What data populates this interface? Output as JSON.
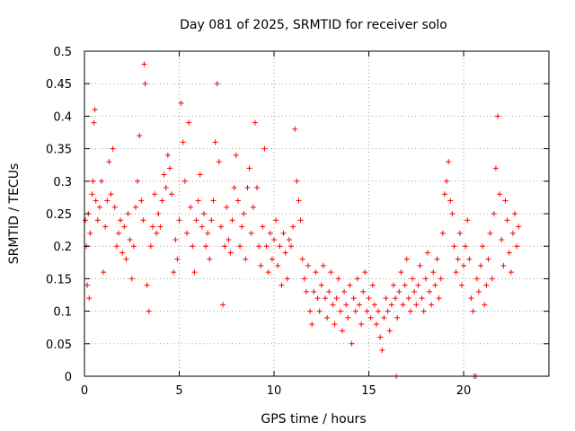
{
  "chart_data": {
    "type": "scatter",
    "title": "Day 081 of 2025, SRMTID for receiver solo",
    "xlabel": "GPS time / hours",
    "ylabel": "SRMTID / TECUs",
    "xlim": [
      0,
      24.5
    ],
    "ylim": [
      0,
      0.5
    ],
    "grid": true,
    "marker": "+",
    "color": "#ff0000",
    "xticks": [
      {
        "value": 0,
        "label": "0"
      },
      {
        "value": 5,
        "label": "5"
      },
      {
        "value": 10,
        "label": "10"
      },
      {
        "value": 15,
        "label": "15"
      },
      {
        "value": 20,
        "label": "20"
      }
    ],
    "yticks": [
      {
        "value": 0,
        "label": "0"
      },
      {
        "value": 0.05,
        "label": "0.05"
      },
      {
        "value": 0.1,
        "label": "0.1"
      },
      {
        "value": 0.15,
        "label": "0.15"
      },
      {
        "value": 0.2,
        "label": "0.2"
      },
      {
        "value": 0.25,
        "label": "0.25"
      },
      {
        "value": 0.3,
        "label": "0.3"
      },
      {
        "value": 0.35,
        "label": "0.35"
      },
      {
        "value": 0.4,
        "label": "0.4"
      },
      {
        "value": 0.45,
        "label": "0.45"
      },
      {
        "value": 0.5,
        "label": "0.5"
      }
    ],
    "series": [
      {
        "name": "SRMTID",
        "points": [
          [
            0.05,
            0.24
          ],
          [
            0.1,
            0.2
          ],
          [
            0.15,
            0.14
          ],
          [
            0.2,
            0.25
          ],
          [
            0.25,
            0.12
          ],
          [
            0.3,
            0.22
          ],
          [
            0.4,
            0.28
          ],
          [
            0.45,
            0.3
          ],
          [
            0.5,
            0.39
          ],
          [
            0.55,
            0.41
          ],
          [
            0.6,
            0.27
          ],
          [
            0.7,
            0.24
          ],
          [
            0.8,
            0.26
          ],
          [
            0.9,
            0.3
          ],
          [
            1.0,
            0.16
          ],
          [
            1.1,
            0.23
          ],
          [
            1.2,
            0.27
          ],
          [
            1.3,
            0.33
          ],
          [
            1.4,
            0.28
          ],
          [
            1.5,
            0.35
          ],
          [
            1.6,
            0.26
          ],
          [
            1.7,
            0.2
          ],
          [
            1.8,
            0.22
          ],
          [
            1.9,
            0.24
          ],
          [
            2.0,
            0.19
          ],
          [
            2.1,
            0.23
          ],
          [
            2.2,
            0.18
          ],
          [
            2.3,
            0.25
          ],
          [
            2.4,
            0.21
          ],
          [
            2.5,
            0.15
          ],
          [
            2.6,
            0.2
          ],
          [
            2.7,
            0.26
          ],
          [
            2.8,
            0.3
          ],
          [
            2.9,
            0.37
          ],
          [
            3.0,
            0.27
          ],
          [
            3.1,
            0.24
          ],
          [
            3.15,
            0.48
          ],
          [
            3.2,
            0.45
          ],
          [
            3.3,
            0.14
          ],
          [
            3.4,
            0.1
          ],
          [
            3.5,
            0.2
          ],
          [
            3.6,
            0.23
          ],
          [
            3.7,
            0.28
          ],
          [
            3.8,
            0.22
          ],
          [
            3.9,
            0.25
          ],
          [
            4.0,
            0.23
          ],
          [
            4.1,
            0.27
          ],
          [
            4.2,
            0.31
          ],
          [
            4.3,
            0.29
          ],
          [
            4.4,
            0.34
          ],
          [
            4.5,
            0.32
          ],
          [
            4.6,
            0.28
          ],
          [
            4.7,
            0.16
          ],
          [
            4.8,
            0.21
          ],
          [
            4.9,
            0.18
          ],
          [
            5.0,
            0.24
          ],
          [
            5.1,
            0.42
          ],
          [
            5.2,
            0.36
          ],
          [
            5.3,
            0.3
          ],
          [
            5.4,
            0.22
          ],
          [
            5.5,
            0.39
          ],
          [
            5.6,
            0.26
          ],
          [
            5.7,
            0.2
          ],
          [
            5.8,
            0.16
          ],
          [
            5.9,
            0.24
          ],
          [
            6.0,
            0.27
          ],
          [
            6.1,
            0.31
          ],
          [
            6.2,
            0.23
          ],
          [
            6.3,
            0.25
          ],
          [
            6.4,
            0.2
          ],
          [
            6.5,
            0.22
          ],
          [
            6.6,
            0.18
          ],
          [
            6.7,
            0.24
          ],
          [
            6.8,
            0.27
          ],
          [
            6.9,
            0.36
          ],
          [
            7.0,
            0.45
          ],
          [
            7.1,
            0.33
          ],
          [
            7.2,
            0.23
          ],
          [
            7.3,
            0.11
          ],
          [
            7.4,
            0.2
          ],
          [
            7.5,
            0.26
          ],
          [
            7.6,
            0.21
          ],
          [
            7.7,
            0.19
          ],
          [
            7.8,
            0.24
          ],
          [
            7.9,
            0.29
          ],
          [
            8.0,
            0.34
          ],
          [
            8.1,
            0.27
          ],
          [
            8.2,
            0.2
          ],
          [
            8.3,
            0.23
          ],
          [
            8.4,
            0.25
          ],
          [
            8.5,
            0.18
          ],
          [
            8.6,
            0.29
          ],
          [
            8.7,
            0.32
          ],
          [
            8.8,
            0.22
          ],
          [
            8.9,
            0.26
          ],
          [
            9.0,
            0.39
          ],
          [
            9.1,
            0.29
          ],
          [
            9.2,
            0.2
          ],
          [
            9.3,
            0.17
          ],
          [
            9.4,
            0.23
          ],
          [
            9.5,
            0.35
          ],
          [
            9.6,
            0.2
          ],
          [
            9.7,
            0.16
          ],
          [
            9.8,
            0.22
          ],
          [
            9.9,
            0.18
          ],
          [
            10.0,
            0.21
          ],
          [
            10.1,
            0.24
          ],
          [
            10.2,
            0.17
          ],
          [
            10.3,
            0.2
          ],
          [
            10.4,
            0.14
          ],
          [
            10.5,
            0.22
          ],
          [
            10.6,
            0.19
          ],
          [
            10.7,
            0.15
          ],
          [
            10.8,
            0.21
          ],
          [
            10.9,
            0.2
          ],
          [
            11.0,
            0.23
          ],
          [
            11.1,
            0.38
          ],
          [
            11.2,
            0.3
          ],
          [
            11.3,
            0.27
          ],
          [
            11.4,
            0.24
          ],
          [
            11.5,
            0.18
          ],
          [
            11.6,
            0.15
          ],
          [
            11.7,
            0.13
          ],
          [
            11.8,
            0.17
          ],
          [
            11.9,
            0.1
          ],
          [
            12.0,
            0.08
          ],
          [
            12.1,
            0.13
          ],
          [
            12.2,
            0.16
          ],
          [
            12.3,
            0.12
          ],
          [
            12.4,
            0.1
          ],
          [
            12.5,
            0.14
          ],
          [
            12.6,
            0.17
          ],
          [
            12.7,
            0.12
          ],
          [
            12.8,
            0.09
          ],
          [
            12.9,
            0.13
          ],
          [
            13.0,
            0.16
          ],
          [
            13.1,
            0.11
          ],
          [
            13.2,
            0.08
          ],
          [
            13.3,
            0.12
          ],
          [
            13.4,
            0.15
          ],
          [
            13.5,
            0.1
          ],
          [
            13.6,
            0.07
          ],
          [
            13.7,
            0.13
          ],
          [
            13.8,
            0.11
          ],
          [
            13.9,
            0.09
          ],
          [
            14.0,
            0.14
          ],
          [
            14.1,
            0.05
          ],
          [
            14.2,
            0.12
          ],
          [
            14.3,
            0.1
          ],
          [
            14.4,
            0.15
          ],
          [
            14.5,
            0.11
          ],
          [
            14.6,
            0.08
          ],
          [
            14.7,
            0.13
          ],
          [
            14.8,
            0.16
          ],
          [
            14.9,
            0.1
          ],
          [
            15.0,
            0.12
          ],
          [
            15.1,
            0.09
          ],
          [
            15.2,
            0.14
          ],
          [
            15.3,
            0.11
          ],
          [
            15.4,
            0.08
          ],
          [
            15.5,
            0.1
          ],
          [
            15.6,
            0.06
          ],
          [
            15.7,
            0.04
          ],
          [
            15.8,
            0.09
          ],
          [
            15.9,
            0.12
          ],
          [
            16.0,
            0.1
          ],
          [
            16.1,
            0.07
          ],
          [
            16.2,
            0.11
          ],
          [
            16.3,
            0.14
          ],
          [
            16.4,
            0.12
          ],
          [
            16.45,
            0.0
          ],
          [
            16.5,
            0.09
          ],
          [
            16.6,
            0.13
          ],
          [
            16.7,
            0.16
          ],
          [
            16.8,
            0.11
          ],
          [
            16.9,
            0.14
          ],
          [
            17.0,
            0.18
          ],
          [
            17.1,
            0.12
          ],
          [
            17.2,
            0.1
          ],
          [
            17.3,
            0.15
          ],
          [
            17.4,
            0.13
          ],
          [
            17.5,
            0.11
          ],
          [
            17.6,
            0.14
          ],
          [
            17.7,
            0.17
          ],
          [
            17.8,
            0.12
          ],
          [
            17.9,
            0.1
          ],
          [
            18.0,
            0.15
          ],
          [
            18.1,
            0.19
          ],
          [
            18.2,
            0.13
          ],
          [
            18.3,
            0.11
          ],
          [
            18.4,
            0.16
          ],
          [
            18.5,
            0.14
          ],
          [
            18.6,
            0.18
          ],
          [
            18.7,
            0.12
          ],
          [
            18.8,
            0.15
          ],
          [
            18.9,
            0.22
          ],
          [
            19.0,
            0.28
          ],
          [
            19.1,
            0.3
          ],
          [
            19.2,
            0.33
          ],
          [
            19.3,
            0.27
          ],
          [
            19.4,
            0.25
          ],
          [
            19.5,
            0.2
          ],
          [
            19.6,
            0.16
          ],
          [
            19.7,
            0.18
          ],
          [
            19.8,
            0.22
          ],
          [
            19.9,
            0.14
          ],
          [
            20.0,
            0.17
          ],
          [
            20.1,
            0.2
          ],
          [
            20.2,
            0.24
          ],
          [
            20.3,
            0.18
          ],
          [
            20.4,
            0.12
          ],
          [
            20.5,
            0.1
          ],
          [
            20.55,
            0.0
          ],
          [
            20.65,
            0.0
          ],
          [
            20.7,
            0.15
          ],
          [
            20.8,
            0.13
          ],
          [
            20.9,
            0.17
          ],
          [
            21.0,
            0.2
          ],
          [
            21.1,
            0.11
          ],
          [
            21.2,
            0.14
          ],
          [
            21.3,
            0.18
          ],
          [
            21.4,
            0.22
          ],
          [
            21.5,
            0.15
          ],
          [
            21.6,
            0.25
          ],
          [
            21.7,
            0.32
          ],
          [
            21.8,
            0.4
          ],
          [
            21.9,
            0.28
          ],
          [
            22.0,
            0.21
          ],
          [
            22.1,
            0.17
          ],
          [
            22.2,
            0.27
          ],
          [
            22.3,
            0.24
          ],
          [
            22.4,
            0.19
          ],
          [
            22.5,
            0.16
          ],
          [
            22.6,
            0.22
          ],
          [
            22.7,
            0.25
          ],
          [
            22.8,
            0.2
          ],
          [
            22.9,
            0.23
          ]
        ]
      }
    ]
  }
}
